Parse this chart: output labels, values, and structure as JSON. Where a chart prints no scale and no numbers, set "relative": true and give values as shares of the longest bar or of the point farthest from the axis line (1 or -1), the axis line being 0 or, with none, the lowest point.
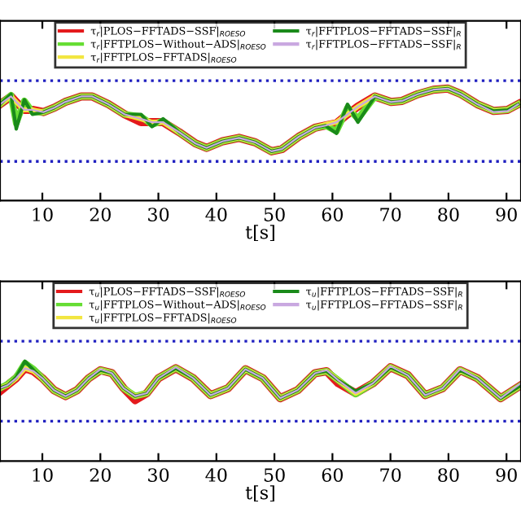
{
  "chart_data": [
    {
      "type": "line",
      "relative": true,
      "xlabel": "t[s]",
      "tick_labels": "x",
      "legend": "top",
      "grid": false,
      "line_style": "solid",
      "marker": "none",
      "xlim": [
        2.7,
        92.5
      ],
      "xticks": [
        10,
        20,
        30,
        40,
        50,
        60,
        70,
        80,
        90
      ],
      "x": [
        2.7,
        4.6,
        5.5,
        6.9,
        8.3,
        10.2,
        12.1,
        13.9,
        16.7,
        18.6,
        21.4,
        24.2,
        27.0,
        28.9,
        30.8,
        33.6,
        36.4,
        38.3,
        41.1,
        43.9,
        46.7,
        49.5,
        51.3,
        54.2,
        57.0,
        58.8,
        60.7,
        62.6,
        64.4,
        67.3,
        70.1,
        72.0,
        74.7,
        77.4,
        79.9,
        82.2,
        85.0,
        87.8,
        90.2,
        92.0
      ],
      "ref_lines": [
        {
          "axis": "y",
          "value": 1.07,
          "color": "#2020c0",
          "line_style": "dotted"
        },
        {
          "axis": "y",
          "value": 0.35,
          "color": "#2020c0",
          "line_style": "dotted"
        }
      ],
      "series": [
        {
          "name": "τ$_{r}$|PLOS−FFTADS−SSF|$_{ROESO}$",
          "color": "#e41a1c",
          "values": [
            0.86,
            0.93,
            0.88,
            0.81,
            0.81,
            0.79,
            0.83,
            0.88,
            0.93,
            0.93,
            0.86,
            0.77,
            0.7,
            0.7,
            0.7,
            0.61,
            0.51,
            0.47,
            0.53,
            0.56,
            0.52,
            0.44,
            0.46,
            0.57,
            0.65,
            0.67,
            0.69,
            0.77,
            0.84,
            0.93,
            0.88,
            0.89,
            0.95,
            0.99,
            1,
            0.95,
            0.86,
            0.8,
            0.81,
            0.86
          ]
        },
        {
          "name": "τ$_{r}$|FFTPLOS−Without−ADS|$_{ROESO}$",
          "color": "#66dd33",
          "values": [
            0.86,
            0.94,
            0.69,
            0.89,
            0.79,
            0.79,
            0.83,
            0.88,
            0.93,
            0.93,
            0.86,
            0.77,
            0.75,
            0.68,
            0.71,
            0.61,
            0.51,
            0.47,
            0.53,
            0.56,
            0.52,
            0.44,
            0.46,
            0.57,
            0.65,
            0.67,
            0.62,
            0.83,
            0.73,
            0.93,
            0.88,
            0.89,
            0.95,
            0.99,
            1,
            0.95,
            0.86,
            0.8,
            0.81,
            0.86
          ]
        },
        {
          "name": "τ$_{r}$|FFTPLOS−FFTADS|$_{ROESO}$",
          "color": "#f2e641",
          "values": [
            0.86,
            0.93,
            0.88,
            0.81,
            0.81,
            0.79,
            0.83,
            0.88,
            0.93,
            0.93,
            0.86,
            0.77,
            0.73,
            0.7,
            0.7,
            0.61,
            0.51,
            0.47,
            0.53,
            0.56,
            0.52,
            0.44,
            0.46,
            0.57,
            0.65,
            0.68,
            0.7,
            0.77,
            0.84,
            0.93,
            0.88,
            0.89,
            0.95,
            0.99,
            1,
            0.95,
            0.86,
            0.8,
            0.81,
            0.86
          ]
        },
        {
          "name": "τ$_{r}$|FFTPLOS−FFTADS−SSF|$_{R}$",
          "color": "#1a8a1a",
          "values": [
            0.86,
            0.95,
            0.64,
            0.9,
            0.77,
            0.79,
            0.83,
            0.88,
            0.93,
            0.93,
            0.86,
            0.77,
            0.77,
            0.66,
            0.73,
            0.61,
            0.51,
            0.47,
            0.53,
            0.56,
            0.52,
            0.44,
            0.46,
            0.57,
            0.65,
            0.67,
            0.6,
            0.86,
            0.7,
            0.93,
            0.88,
            0.89,
            0.95,
            0.99,
            1,
            0.95,
            0.86,
            0.8,
            0.81,
            0.86
          ]
        },
        {
          "name": "τ$_{r}$|FFTPLOS−FFTADS−SSF|$_{R}$",
          "color": "#c9a8e0",
          "values": [
            0.86,
            0.93,
            0.88,
            0.81,
            0.81,
            0.79,
            0.83,
            0.88,
            0.93,
            0.93,
            0.86,
            0.77,
            0.73,
            0.7,
            0.7,
            0.61,
            0.51,
            0.47,
            0.53,
            0.56,
            0.52,
            0.44,
            0.46,
            0.57,
            0.65,
            0.67,
            0.7,
            0.77,
            0.84,
            0.93,
            0.88,
            0.89,
            0.95,
            0.99,
            1,
            0.95,
            0.86,
            0.79,
            0.8,
            0.86
          ]
        }
      ]
    },
    {
      "type": "line",
      "relative": true,
      "xlabel": "t[s]",
      "tick_labels": "x",
      "legend": "top",
      "grid": false,
      "line_style": "solid",
      "marker": "none",
      "xlim": [
        2.7,
        92.5
      ],
      "xticks": [
        10,
        20,
        30,
        40,
        50,
        60,
        70,
        80,
        90
      ],
      "x": [
        2.7,
        4,
        5.5,
        7,
        8.5,
        10,
        12,
        14,
        16,
        18,
        20,
        22,
        24,
        26,
        28,
        30,
        33,
        36,
        39,
        42,
        45,
        48,
        51,
        54,
        57,
        59,
        61,
        64,
        67,
        70,
        73,
        76,
        79,
        82,
        85,
        89,
        92.5
      ],
      "ref_lines": [
        {
          "axis": "y",
          "value": 1.2,
          "color": "#2020c0",
          "line_style": "dotted"
        },
        {
          "axis": "y",
          "value": 0.4,
          "color": "#2020c0",
          "line_style": "dotted"
        }
      ],
      "series": [
        {
          "name": "τ$_{u}$|PLOS−FFTADS−SSF|$_{ROESO}$",
          "color": "#e41a1c",
          "values": [
            0.7,
            0.76,
            0.83,
            0.93,
            0.9,
            0.83,
            0.71,
            0.65,
            0.71,
            0.83,
            0.91,
            0.88,
            0.73,
            0.61,
            0.68,
            0.83,
            0.93,
            0.83,
            0.66,
            0.73,
            0.92,
            0.83,
            0.63,
            0.71,
            0.88,
            0.9,
            0.78,
            0.68,
            0.78,
            0.94,
            0.86,
            0.66,
            0.73,
            0.91,
            0.83,
            0.63,
            0.76
          ]
        },
        {
          "name": "τ$_{u}$|FFTPLOS−Without−ADS|$_{ROESO}$",
          "color": "#66dd33",
          "values": [
            0.73,
            0.77,
            0.84,
            0.98,
            0.92,
            0.83,
            0.71,
            0.65,
            0.71,
            0.83,
            0.91,
            0.88,
            0.73,
            0.65,
            0.68,
            0.83,
            0.93,
            0.83,
            0.66,
            0.73,
            0.92,
            0.83,
            0.63,
            0.71,
            0.88,
            0.9,
            0.81,
            0.67,
            0.78,
            0.94,
            0.86,
            0.66,
            0.73,
            0.91,
            0.83,
            0.63,
            0.76
          ]
        },
        {
          "name": "τ$_{u}$|FFTPLOS−FFTADS|$_{ROESO}$",
          "color": "#f2e641",
          "values": [
            0.73,
            0.76,
            0.83,
            0.93,
            0.9,
            0.83,
            0.71,
            0.65,
            0.71,
            0.83,
            0.91,
            0.88,
            0.73,
            0.65,
            0.68,
            0.83,
            0.93,
            0.83,
            0.66,
            0.73,
            0.92,
            0.83,
            0.63,
            0.71,
            0.88,
            0.9,
            0.81,
            0.68,
            0.78,
            0.94,
            0.86,
            0.66,
            0.73,
            0.91,
            0.83,
            0.63,
            0.76
          ]
        },
        {
          "name": "τ$_{u}$|FFTPLOS−FFTADS−SSF|$_{R}$",
          "color": "#1a8a1a",
          "values": [
            0.73,
            0.76,
            0.84,
            1,
            0.91,
            0.83,
            0.71,
            0.65,
            0.71,
            0.83,
            0.91,
            0.88,
            0.73,
            0.65,
            0.68,
            0.83,
            0.93,
            0.83,
            0.66,
            0.73,
            0.92,
            0.83,
            0.63,
            0.71,
            0.88,
            0.9,
            0.81,
            0.7,
            0.78,
            0.94,
            0.86,
            0.66,
            0.73,
            0.91,
            0.83,
            0.63,
            0.76
          ]
        },
        {
          "name": "τ$_{u}$|FFTPLOS−FFTADS−SSF|$_{R}$",
          "color": "#c9a8e0",
          "values": [
            0.73,
            0.76,
            0.83,
            0.93,
            0.9,
            0.83,
            0.71,
            0.65,
            0.71,
            0.83,
            0.92,
            0.88,
            0.73,
            0.65,
            0.68,
            0.83,
            0.94,
            0.83,
            0.66,
            0.73,
            0.92,
            0.83,
            0.63,
            0.71,
            0.88,
            0.91,
            0.81,
            0.68,
            0.78,
            0.95,
            0.86,
            0.66,
            0.73,
            0.92,
            0.83,
            0.63,
            0.78
          ]
        }
      ]
    }
  ]
}
